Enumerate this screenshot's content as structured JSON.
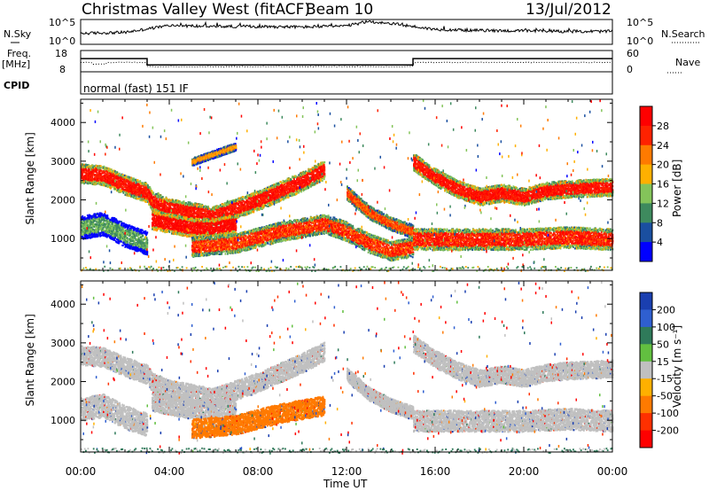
{
  "header": {
    "station": "Christmas Valley West (fitACF)",
    "beam": "Beam 10",
    "date": "13/Jul/2012"
  },
  "noise_panel": {
    "left_label": "N.Sky",
    "right_label": "N.Search",
    "ticks": [
      "10^5",
      "10^0"
    ]
  },
  "freq_panel": {
    "left_label": "Freq.",
    "left_unit": "[MHz]",
    "left_ticks": [
      "18",
      "8"
    ],
    "right_label": "Nave",
    "right_ticks": [
      "60",
      "0"
    ]
  },
  "cpid_panel": {
    "label": "CPID",
    "mode": "normal (fast) 151 IF"
  },
  "x_axis": {
    "label": "Time UT",
    "ticks": [
      "00:00",
      "04:00",
      "08:00",
      "12:00",
      "16:00",
      "20:00",
      "00:00"
    ]
  },
  "power_colorbar": {
    "label": "Power [dB]",
    "ticks": [
      "28",
      "24",
      "20",
      "16",
      "12",
      "8",
      "4"
    ],
    "colors": [
      "#ff0000",
      "#ff2200",
      "#ff7a00",
      "#ffb000",
      "#84c45a",
      "#3e8a5e",
      "#1a4fa0",
      "#0000ff"
    ]
  },
  "velocity_colorbar": {
    "label": "Velocity [m s⁻¹]",
    "ticks": [
      "200",
      "100",
      "50",
      "15",
      "-15",
      "-50",
      "-100",
      "-200"
    ],
    "colors": [
      "#1a3fb0",
      "#2f5fd0",
      "#2f7a5a",
      "#62c040",
      "#c0c0c0",
      "#ffb000",
      "#ff7a00",
      "#ff3000",
      "#ff0000"
    ]
  },
  "chart_data": [
    {
      "type": "line",
      "title": "N.Sky / N.Search",
      "xlabel": "Time UT",
      "ylabel": "",
      "x": [
        0,
        2,
        4,
        6,
        8,
        10,
        12,
        13,
        14,
        16,
        18,
        20,
        22,
        24
      ],
      "series": [
        {
          "name": "N.Sky",
          "values": [
            2.2,
            2.4,
            3.8,
            3.6,
            3.6,
            3.5,
            3.7,
            4.6,
            4.2,
            3.0,
            2.8,
            2.7,
            2.6,
            2.6
          ]
        }
      ],
      "yscale": "log"
    },
    {
      "type": "line",
      "title": "Freq. / Nave",
      "xlabel": "Time UT",
      "ylabel": "Freq. [MHz]",
      "ylim": [
        8,
        18
      ],
      "x": [
        0,
        3.0,
        3.0,
        15.0,
        15.0,
        24
      ],
      "series": [
        {
          "name": "Freq.",
          "values": [
            14.2,
            14.2,
            11.2,
            11.2,
            14.2,
            14.2
          ]
        }
      ]
    },
    {
      "type": "heatmap",
      "title": "Power [dB]",
      "xlabel": "Time UT",
      "ylabel": "Slant Range [km]",
      "xlim": [
        0,
        24
      ],
      "ylim": [
        180,
        4600
      ],
      "clim": [
        0,
        32
      ],
      "bands": [
        {
          "points": [
            [
              0,
              2700
            ],
            [
              1,
              2650
            ],
            [
              2,
              2400
            ],
            [
              3,
              2200
            ],
            [
              3.2,
              2000
            ],
            [
              4,
              1800
            ],
            [
              6,
              1600
            ],
            [
              8,
              2000
            ],
            [
              10,
              2500
            ],
            [
              11,
              2800
            ]
          ],
          "width": 500,
          "value": 26
        },
        {
          "points": [
            [
              0,
              1300
            ],
            [
              1,
              1400
            ],
            [
              2,
              1100
            ],
            [
              3,
              900
            ]
          ],
          "width": 600,
          "value": 10
        },
        {
          "points": [
            [
              3.2,
              1500
            ],
            [
              5,
              1300
            ],
            [
              6,
              1300
            ],
            [
              7,
              1400
            ]
          ],
          "width": 500,
          "value": 28
        },
        {
          "points": [
            [
              5,
              800
            ],
            [
              7,
              900
            ],
            [
              9,
              1200
            ],
            [
              11,
              1400
            ],
            [
              12,
              1200
            ],
            [
              13,
              900
            ],
            [
              14,
              700
            ],
            [
              15,
              800
            ]
          ],
          "width": 500,
          "value": 24
        },
        {
          "points": [
            [
              12,
              2200
            ],
            [
              13,
              1700
            ],
            [
              14,
              1400
            ],
            [
              15,
              1200
            ]
          ],
          "width": 350,
          "value": 22
        },
        {
          "points": [
            [
              15,
              3000
            ],
            [
              16,
              2600
            ],
            [
              17,
              2300
            ],
            [
              18,
              2100
            ],
            [
              19,
              2200
            ],
            [
              20,
              2100
            ],
            [
              21,
              2250
            ],
            [
              22,
              2300
            ],
            [
              24,
              2350
            ]
          ],
          "width": 450,
          "value": 26
        },
        {
          "points": [
            [
              15,
              1000
            ],
            [
              18,
              1000
            ],
            [
              20,
              1000
            ],
            [
              22,
              1050
            ],
            [
              24,
              1000
            ]
          ],
          "width": 550,
          "value": 25
        },
        {
          "points": [
            [
              5,
              3000
            ],
            [
              7,
              3400
            ]
          ],
          "width": 200,
          "value": 18
        }
      ]
    },
    {
      "type": "heatmap",
      "title": "Velocity [m s⁻¹]",
      "xlabel": "Time UT",
      "ylabel": "Slant Range [km]",
      "xlim": [
        0,
        24
      ],
      "ylim": [
        180,
        4600
      ],
      "clim": [
        -250,
        250
      ],
      "bands": [
        {
          "points": [
            [
              0,
              2700
            ],
            [
              1,
              2650
            ],
            [
              2,
              2400
            ],
            [
              3,
              2200
            ],
            [
              3.2,
              2000
            ],
            [
              4,
              1800
            ],
            [
              6,
              1600
            ],
            [
              8,
              2000
            ],
            [
              10,
              2500
            ],
            [
              11,
              2800
            ]
          ],
          "width": 500,
          "value": 0
        },
        {
          "points": [
            [
              0,
              1300
            ],
            [
              1,
              1400
            ],
            [
              2,
              1100
            ],
            [
              3,
              900
            ]
          ],
          "width": 600,
          "value": 0
        },
        {
          "points": [
            [
              3.2,
              1500
            ],
            [
              5,
              1300
            ],
            [
              6,
              1300
            ],
            [
              7,
              1400
            ]
          ],
          "width": 500,
          "value": 0
        },
        {
          "points": [
            [
              5,
              800
            ],
            [
              7,
              900
            ],
            [
              9,
              1200
            ],
            [
              11,
              1400
            ]
          ],
          "width": 500,
          "value": -60
        },
        {
          "points": [
            [
              12,
              2200
            ],
            [
              13,
              1700
            ],
            [
              14,
              1400
            ],
            [
              15,
              1200
            ]
          ],
          "width": 350,
          "value": 0
        },
        {
          "points": [
            [
              15,
              3000
            ],
            [
              16,
              2600
            ],
            [
              17,
              2300
            ],
            [
              18,
              2100
            ],
            [
              19,
              2200
            ],
            [
              20,
              2100
            ],
            [
              21,
              2250
            ],
            [
              22,
              2300
            ],
            [
              24,
              2350
            ]
          ],
          "width": 450,
          "value": 0
        },
        {
          "points": [
            [
              15,
              1000
            ],
            [
              18,
              1000
            ],
            [
              20,
              1000
            ],
            [
              22,
              1050
            ],
            [
              24,
              1000
            ]
          ],
          "width": 550,
          "value": 0
        }
      ]
    }
  ]
}
